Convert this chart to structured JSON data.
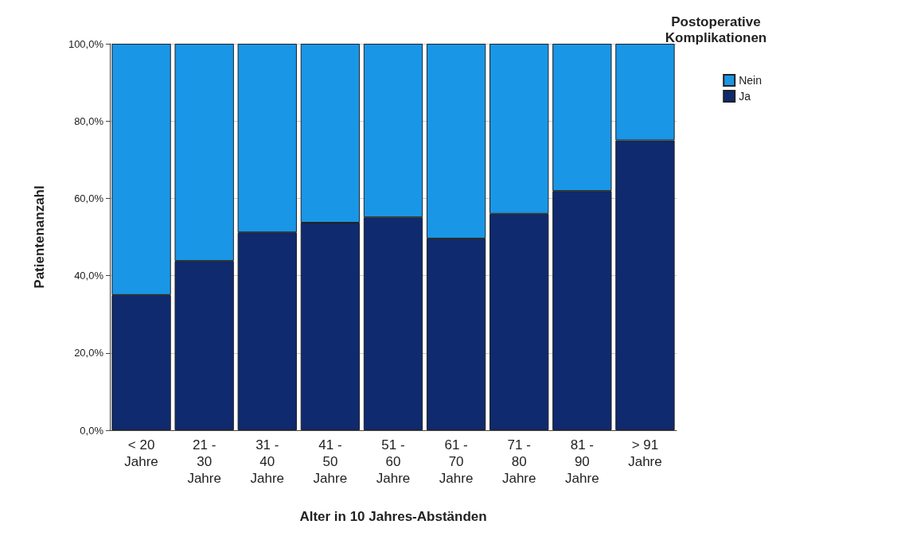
{
  "chart_data": {
    "type": "bar",
    "stacked": true,
    "xlabel": "Alter in 10 Jahres-Abständen",
    "ylabel": "Patientenanzahl",
    "legend_title": "Postoperative\nKomplikationen",
    "legend": "top right",
    "categories": [
      "< 20\nJahre",
      "21 -\n30\nJahre",
      "31 -\n40\nJahre",
      "41 -\n50\nJahre",
      "51 -\n60\nJahre",
      "61 -\n70\nJahre",
      "71 -\n80\nJahre",
      "81 -\n90\nJahre",
      "> 91\nJahre"
    ],
    "series": [
      {
        "name": "Ja",
        "color": "#0f2a6e",
        "values": [
          35.0,
          43.8,
          51.2,
          53.7,
          55.1,
          49.6,
          56.0,
          61.9,
          75.0
        ]
      },
      {
        "name": "Nein",
        "color": "#1a96e6",
        "values": [
          65.0,
          56.2,
          48.8,
          46.3,
          44.9,
          50.4,
          44.0,
          38.1,
          25.0
        ]
      }
    ],
    "ylim": [
      0,
      100
    ],
    "yticks": [
      {
        "value": 0,
        "label": "0,0%"
      },
      {
        "value": 20,
        "label": "20,0%"
      },
      {
        "value": 40,
        "label": "40,0%"
      },
      {
        "value": 60,
        "label": "60,0%"
      },
      {
        "value": 80,
        "label": "80,0%"
      },
      {
        "value": 100,
        "label": "100,0%"
      }
    ],
    "grid": "y"
  }
}
